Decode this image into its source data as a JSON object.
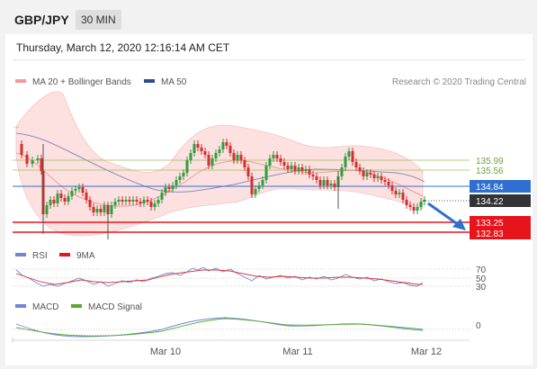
{
  "header": {
    "pair": "GBP/JPY",
    "timeframe": "30 MIN"
  },
  "date_line": "Thursday, March 12, 2020 12:16:14 AM CET",
  "legend": {
    "ma20": "MA 20 + Bollinger Bands",
    "ma50": "MA 50",
    "source": "Research © 2020 Trading Central"
  },
  "levels": {
    "r2": "135.99",
    "r1": "135.56",
    "pivot": "134.84",
    "last": "134.22",
    "s1": "133.25",
    "s2": "132.83"
  },
  "rsi_legend": {
    "rsi": "RSI",
    "ma": "9MA"
  },
  "rsi_ticks": [
    "70",
    "50",
    "30"
  ],
  "macd_legend": {
    "macd": "MACD",
    "signal": "MACD Signal"
  },
  "macd_ticks": [
    "0"
  ],
  "x_labels": [
    "Mar 10",
    "Mar 11",
    "Mar 12"
  ],
  "colors": {
    "up": "#2e9e3f",
    "down": "#d32f2f",
    "pivot": "#2f6fd1",
    "last": "#333333",
    "support": "#e8141b",
    "resist": "#9bc25a",
    "band": "#fbd0d0",
    "ma50": "#8b8fc0"
  }
}
